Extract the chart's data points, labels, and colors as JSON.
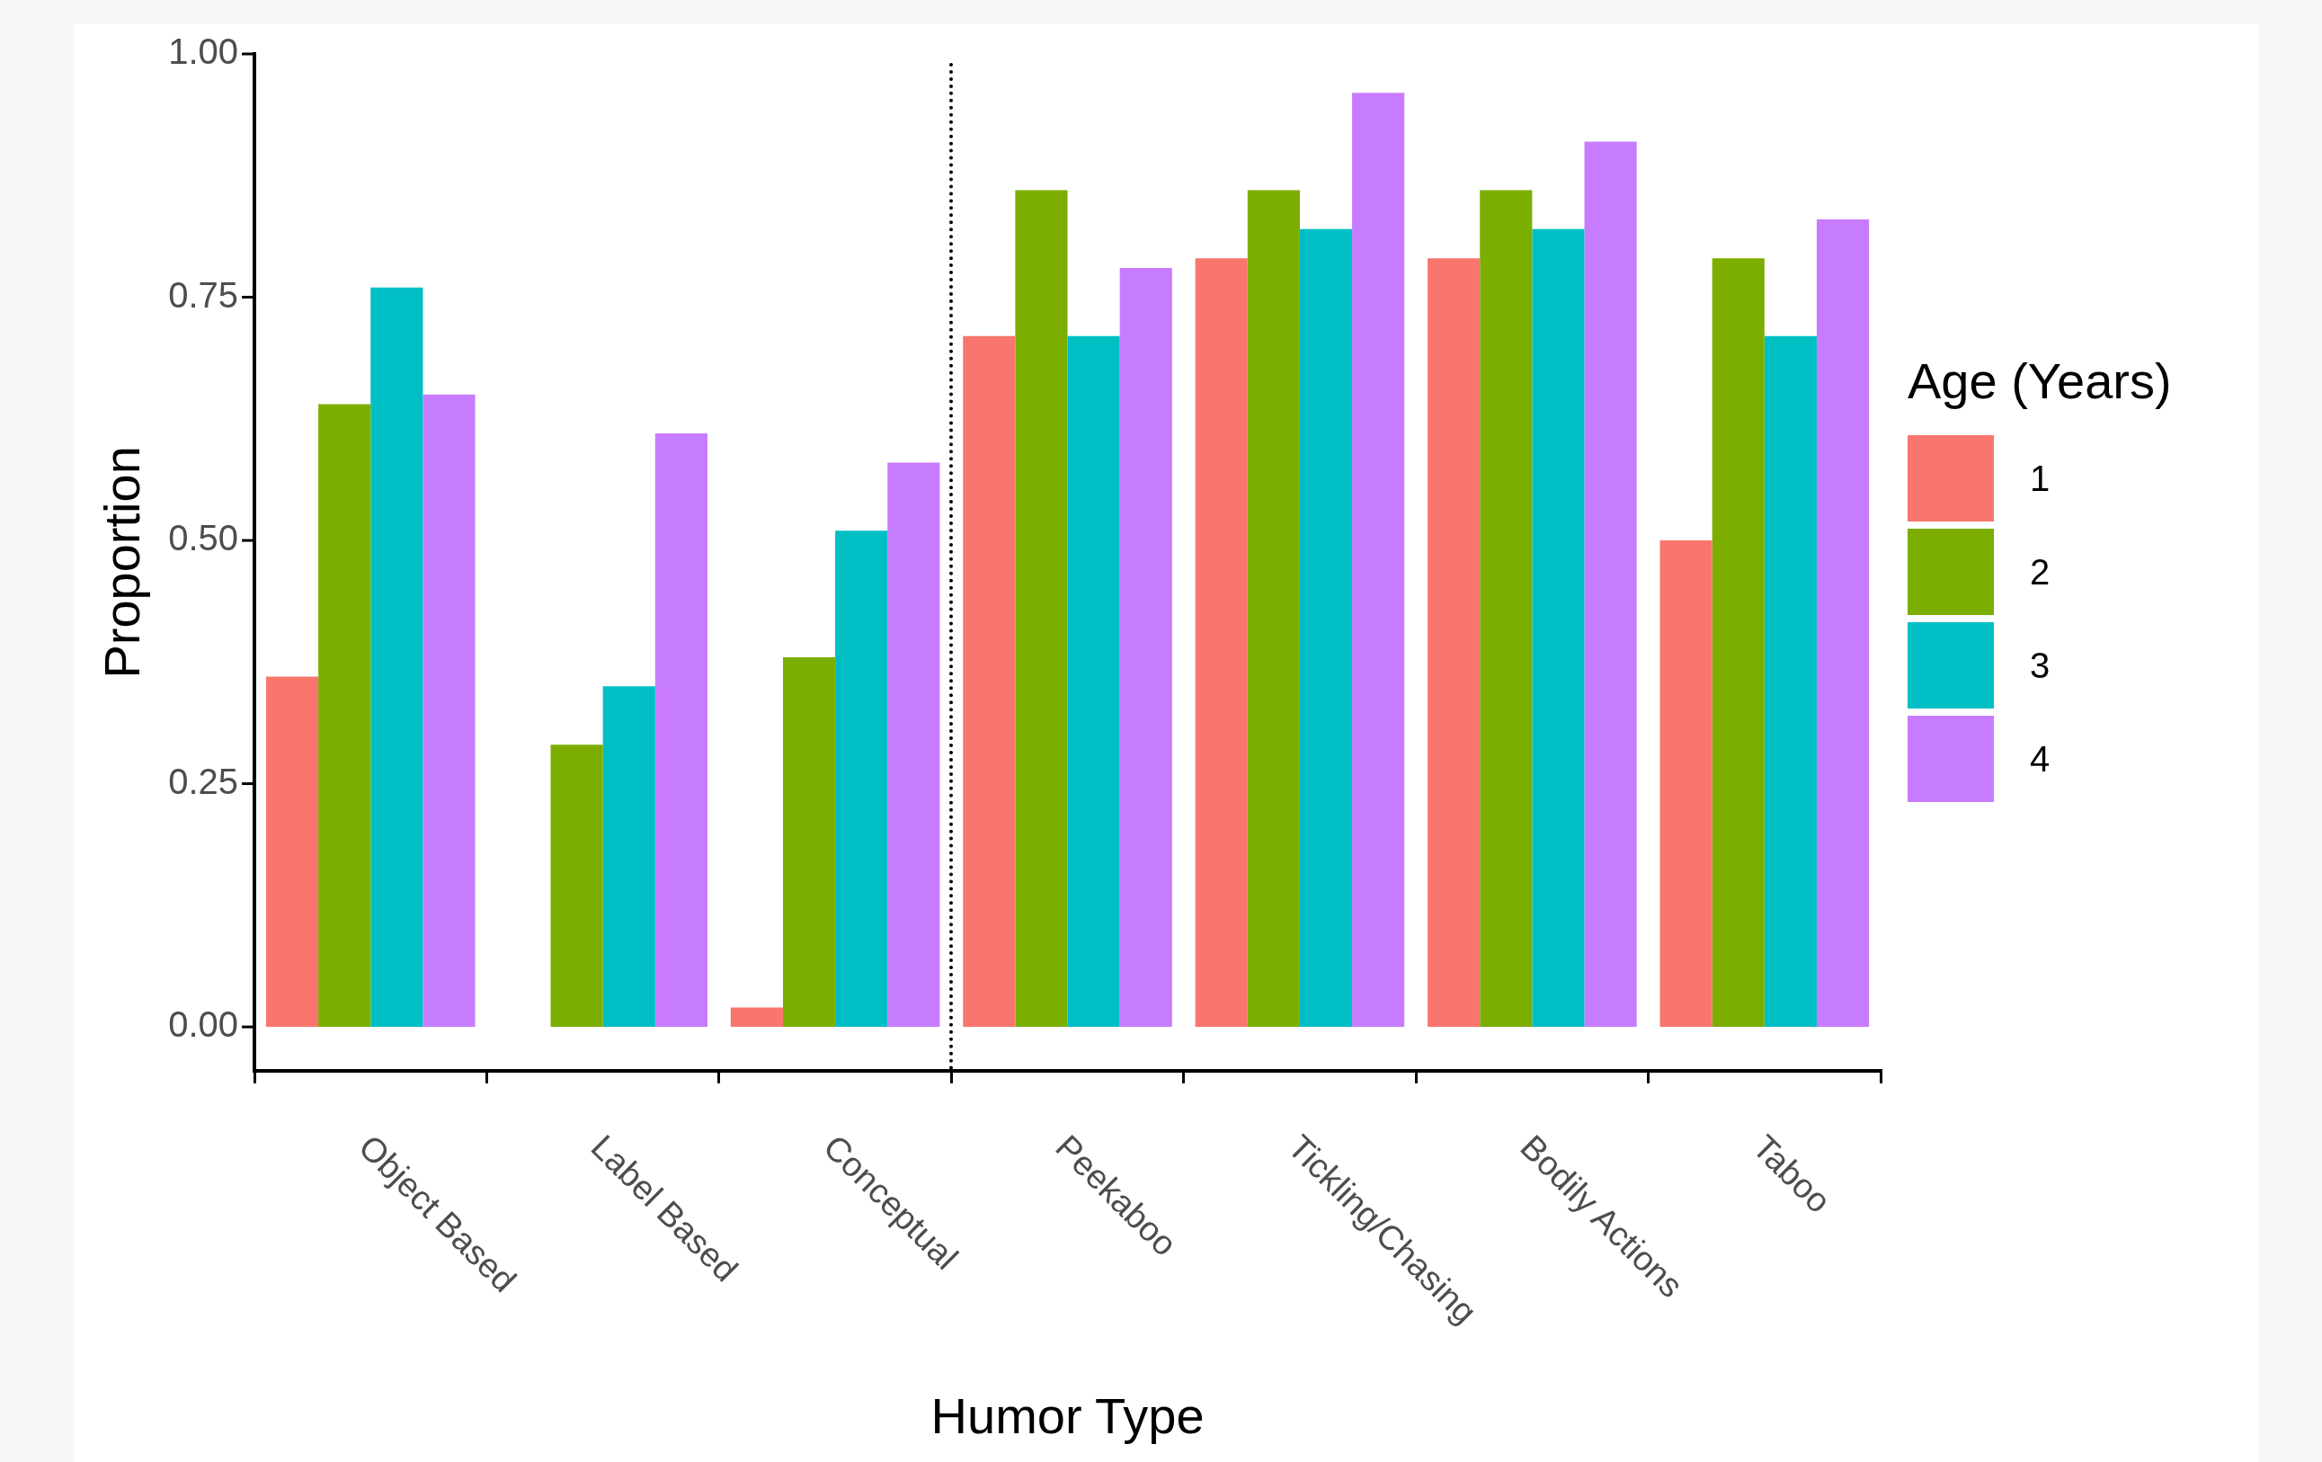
{
  "chart_data": {
    "type": "bar",
    "xlabel": "Humor Type",
    "ylabel": "Proportion",
    "legend_title": "Age (Years)",
    "legend": "right",
    "categories": [
      "Object Based",
      "Label Based",
      "Conceptual",
      "Peekaboo",
      "Tickling/Chasing",
      "Bodily Actions",
      "Taboo"
    ],
    "series": [
      {
        "name": "1",
        "color": "#f8766d",
        "values": [
          0.36,
          0,
          0.02,
          0.71,
          0.79,
          0.79,
          0.5
        ]
      },
      {
        "name": "2",
        "color": "#7cae00",
        "values": [
          0.64,
          0.29,
          0.38,
          0.86,
          0.86,
          0.86,
          0.79
        ]
      },
      {
        "name": "3",
        "color": "#00bfc4",
        "values": [
          0.76,
          0.35,
          0.51,
          0.71,
          0.82,
          0.82,
          0.71
        ]
      },
      {
        "name": "4",
        "color": "#c77cff",
        "values": [
          0.65,
          0.61,
          0.58,
          0.78,
          0.96,
          0.91,
          0.83
        ]
      }
    ],
    "ylim": [
      -0.045,
      1.0
    ],
    "yticks": [
      {
        "value": 0,
        "label": "0.00"
      },
      {
        "value": 0.25,
        "label": "0.25"
      },
      {
        "value": 0.5,
        "label": "0.50"
      },
      {
        "value": 0.75,
        "label": "0.75"
      },
      {
        "value": 1,
        "label": "1.00"
      }
    ]
  }
}
